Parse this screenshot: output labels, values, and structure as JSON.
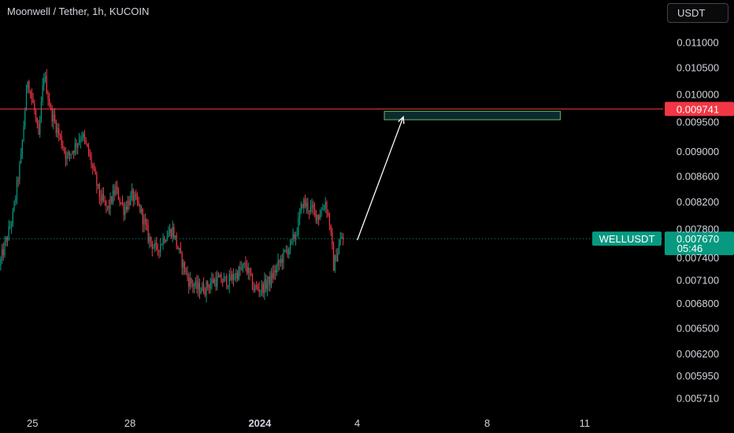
{
  "header": {
    "title": "Moonwell / Tether, 1h, KUCOIN",
    "currency_button": "USDT"
  },
  "chart_data": {
    "type": "candlestick",
    "title": "Moonwell / Tether, 1h, KUCOIN",
    "symbol": "WELLUSDT",
    "y_ticks": [
      "0.011000",
      "0.010500",
      "0.010000",
      "0.009500",
      "0.009000",
      "0.008600",
      "0.008200",
      "0.007800",
      "0.007400",
      "0.007100",
      "0.006800",
      "0.006500",
      "0.006200",
      "0.005950",
      "0.005710"
    ],
    "y_scale": "log",
    "ylim": [
      0.0056,
      0.0114
    ],
    "x_ticks": [
      {
        "label": "25",
        "value": "2023-12-25",
        "bold": false
      },
      {
        "label": "28",
        "value": "2023-12-28",
        "bold": false
      },
      {
        "label": "2024",
        "value": "2024-01-01",
        "bold": true
      },
      {
        "label": "4",
        "value": "2024-01-04",
        "bold": false
      },
      {
        "label": "8",
        "value": "2024-01-08",
        "bold": false
      },
      {
        "label": "11",
        "value": "2024-01-11",
        "bold": false
      }
    ],
    "xlim": [
      "2023-12-24T00:00",
      "2024-01-13T10:00"
    ],
    "price_path": [
      [
        "2023-12-24T00:00",
        0.0073
      ],
      [
        "2023-12-24T06:00",
        0.0077
      ],
      [
        "2023-12-24T10:00",
        0.008
      ],
      [
        "2023-12-24T16:00",
        0.0089
      ],
      [
        "2023-12-24T21:00",
        0.0103
      ],
      [
        "2023-12-25T02:00",
        0.0097
      ],
      [
        "2023-12-25T05:00",
        0.0092
      ],
      [
        "2023-12-25T09:00",
        0.0104
      ],
      [
        "2023-12-25T14:00",
        0.0097
      ],
      [
        "2023-12-25T20:00",
        0.0093
      ],
      [
        "2023-12-26T02:00",
        0.0089
      ],
      [
        "2023-12-26T08:00",
        0.0091
      ],
      [
        "2023-12-26T13:00",
        0.0093
      ],
      [
        "2023-12-26T19:00",
        0.0089
      ],
      [
        "2023-12-27T02:00",
        0.0083
      ],
      [
        "2023-12-27T08:00",
        0.0081
      ],
      [
        "2023-12-27T14:00",
        0.0084
      ],
      [
        "2023-12-27T20:00",
        0.0081
      ],
      [
        "2023-12-28T02:00",
        0.0083
      ],
      [
        "2023-12-28T08:00",
        0.0081
      ],
      [
        "2023-12-28T14:00",
        0.0077
      ],
      [
        "2023-12-28T20:00",
        0.0075
      ],
      [
        "2023-12-29T02:00",
        0.0077
      ],
      [
        "2023-12-29T08:00",
        0.0078
      ],
      [
        "2023-12-29T14:00",
        0.0074
      ],
      [
        "2023-12-29T20:00",
        0.0071
      ],
      [
        "2023-12-30T02:00",
        0.007
      ],
      [
        "2023-12-30T08:00",
        0.007
      ],
      [
        "2023-12-30T14:00",
        0.0071
      ],
      [
        "2023-12-30T20:00",
        0.0071
      ],
      [
        "2023-12-31T02:00",
        0.0071
      ],
      [
        "2023-12-31T08:00",
        0.0072
      ],
      [
        "2023-12-31T14:00",
        0.0073
      ],
      [
        "2023-12-31T20:00",
        0.007
      ],
      [
        "2024-01-01T02:00",
        0.007
      ],
      [
        "2024-01-01T08:00",
        0.0071
      ],
      [
        "2024-01-01T14:00",
        0.0073
      ],
      [
        "2024-01-01T20:00",
        0.0075
      ],
      [
        "2024-01-02T00:00",
        0.0076
      ],
      [
        "2024-01-02T04:00",
        0.0078
      ],
      [
        "2024-01-02T08:00",
        0.0082
      ],
      [
        "2024-01-02T14:00",
        0.0081
      ],
      [
        "2024-01-02T20:00",
        0.008
      ],
      [
        "2024-01-03T01:00",
        0.0082
      ],
      [
        "2024-01-03T04:00",
        0.0079
      ],
      [
        "2024-01-03T07:00",
        0.0073
      ],
      [
        "2024-01-03T10:00",
        0.0075
      ],
      [
        "2024-01-03T13:00",
        0.0077
      ]
    ],
    "last_price": "0.007670",
    "countdown": "05:46",
    "symbol_label": "WELLUSDT",
    "horizontal_line": {
      "price": 0.009741,
      "label": "0.009741",
      "color": "#f23645"
    },
    "target_box": {
      "x_start": "2024-01-04T20:00",
      "x_end": "2024-01-10T06:00",
      "price_high": 0.0097,
      "price_low": 0.00955,
      "border": "#66bb6a"
    },
    "projection_arrow": {
      "from": [
        "2024-01-04T00:00",
        0.00765
      ],
      "to": [
        "2024-01-05T10:00",
        0.0096
      ],
      "color": "#ffffff"
    },
    "colors": {
      "up": "#089981",
      "down": "#f23645",
      "background": "#000000",
      "axis_text": "#d1d4dc"
    },
    "grid": false
  }
}
